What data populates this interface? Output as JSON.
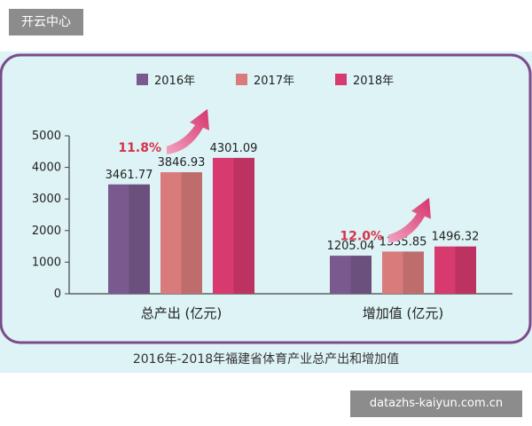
{
  "header": {
    "badge": "开云中心"
  },
  "watermark": {
    "text": "datazhs-kaiyun.com.cn"
  },
  "colors": {
    "panel_bg": "#ddf3f5",
    "frame": "#7b4b8c",
    "axis": "#444444",
    "growth_text": "#d6334a",
    "arrow_start": "#f2a4c0",
    "arrow_end": "#d6336c"
  },
  "chart_data": {
    "type": "bar",
    "title": "2016年-2018年福建省体育产业总产出和增加值",
    "categories": [
      "总产出 (亿元)",
      "增加值 (亿元)"
    ],
    "series": [
      {
        "name": "2016年",
        "color": "#7a5a8e",
        "values": [
          3461.77,
          1205.04
        ],
        "labels": [
          "3461.77",
          "1205.04"
        ]
      },
      {
        "name": "2017年",
        "color": "#d97b7b",
        "values": [
          3846.93,
          1335.85
        ],
        "labels": [
          "3846.93",
          "1335.85"
        ]
      },
      {
        "name": "2018年",
        "color": "#d63a6e",
        "values": [
          4301.09,
          1496.32
        ],
        "labels": [
          "4301.09",
          "1496.32"
        ]
      }
    ],
    "growth": [
      "11.8%",
      "12.0%"
    ],
    "ylim": [
      0,
      5000
    ],
    "yticks": [
      "0",
      "1000",
      "2000",
      "3000",
      "4000",
      "5000"
    ],
    "legend_position": "top-center",
    "grid": false
  }
}
